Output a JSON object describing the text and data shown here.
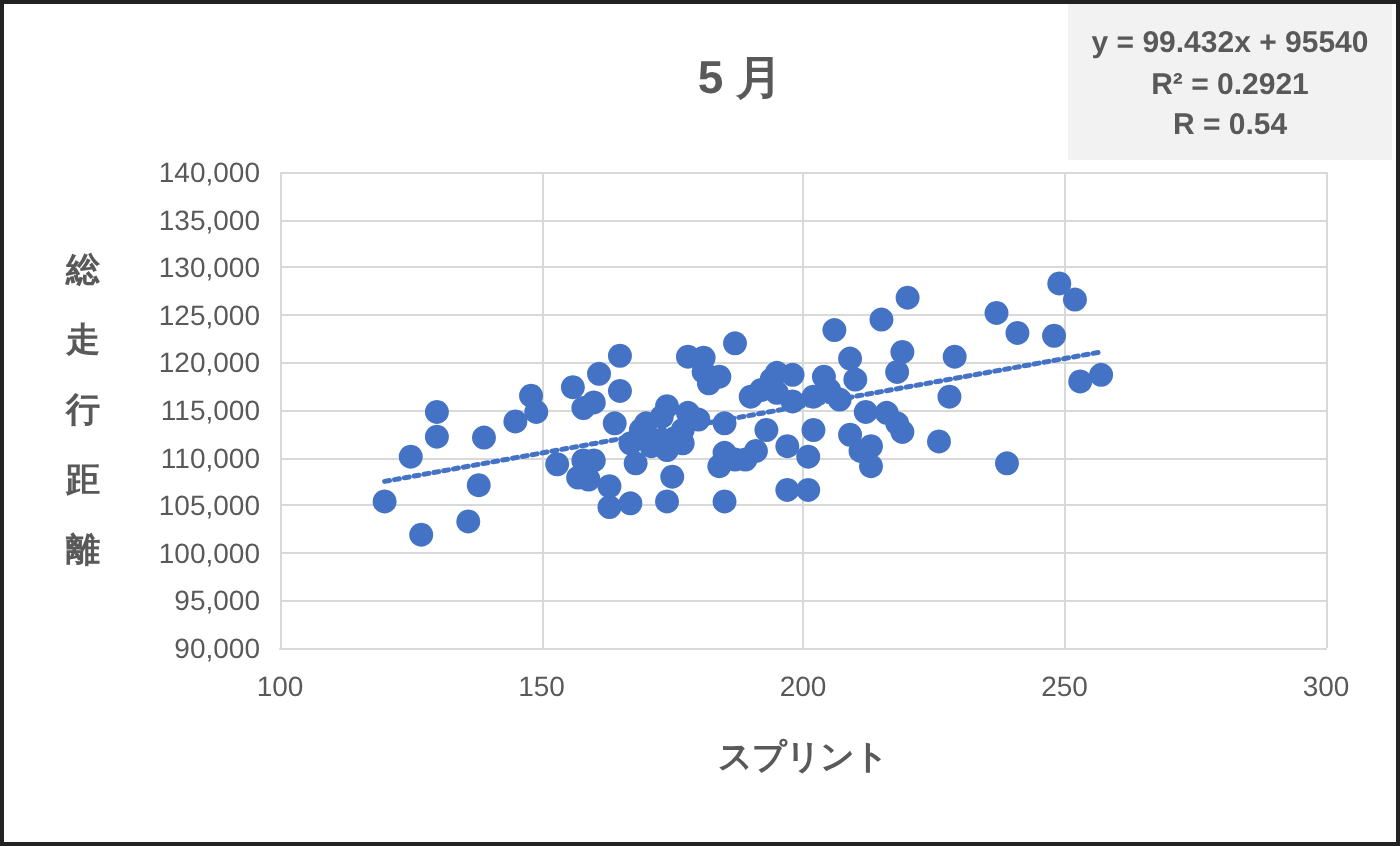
{
  "chart_data": {
    "type": "scatter",
    "title": "5 月",
    "xlabel": "スプリント",
    "ylabel": "総走行距離",
    "annotations": [
      "y = 99.432x + 95540",
      "R² = 0.2921",
      "R = 0.54"
    ],
    "xlim": [
      100,
      300
    ],
    "xticks": [
      100,
      150,
      200,
      250,
      300
    ],
    "ylim": [
      90000,
      140000
    ],
    "yticks": [
      {
        "value": 90000,
        "label": "90,000"
      },
      {
        "value": 95000,
        "label": "95,000"
      },
      {
        "value": 100000,
        "label": "100,000"
      },
      {
        "value": 105000,
        "label": "105,000"
      },
      {
        "value": 110000,
        "label": "110,000"
      },
      {
        "value": 115000,
        "label": "115,000"
      },
      {
        "value": 120000,
        "label": "120,000"
      },
      {
        "value": 125000,
        "label": "125,000"
      },
      {
        "value": 130000,
        "label": "130,000"
      },
      {
        "value": 135000,
        "label": "135,000"
      },
      {
        "value": 140000,
        "label": "140,000"
      }
    ],
    "grid": true,
    "marker": "circle",
    "series": [
      {
        "color": "#4472c4",
        "x": [
          120,
          127,
          125,
          130,
          130,
          136,
          138,
          139,
          145,
          148,
          149,
          153,
          156,
          161,
          158,
          160,
          164,
          165,
          165,
          158,
          160,
          157,
          159,
          163,
          163,
          167,
          167,
          174,
          173,
          170,
          169,
          173,
          171,
          174,
          168,
          175,
          174,
          178,
          181,
          181,
          182,
          184,
          187,
          178,
          180,
          177,
          177,
          185,
          185,
          184,
          187,
          185,
          189,
          191,
          190,
          192,
          194,
          195,
          198,
          195,
          198,
          193,
          197,
          197,
          201,
          201,
          202,
          202,
          204,
          205,
          207,
          206,
          209,
          210,
          212,
          209,
          211,
          213,
          213,
          215,
          220,
          219,
          218,
          216,
          218,
          219,
          226,
          229,
          228,
          237,
          241,
          239,
          249,
          252,
          248,
          253,
          257
        ],
        "values": [
          105400,
          101900,
          110100,
          114800,
          112200,
          103300,
          107100,
          112100,
          113800,
          116500,
          114800,
          109300,
          117400,
          118800,
          115200,
          115800,
          113600,
          120700,
          117000,
          109700,
          109700,
          107900,
          107700,
          107000,
          104800,
          105200,
          111500,
          115400,
          114300,
          113600,
          112900,
          111900,
          111200,
          110800,
          109400,
          108000,
          105400,
          120600,
          120500,
          119000,
          117800,
          118500,
          122000,
          114700,
          114000,
          112900,
          111500,
          113600,
          110500,
          109100,
          109800,
          105400,
          109800,
          110700,
          116400,
          117100,
          118200,
          118900,
          118700,
          116800,
          115900,
          112900,
          111200,
          106600,
          106600,
          110100,
          116400,
          112900,
          118500,
          117100,
          116100,
          123400,
          120400,
          118200,
          114800,
          112400,
          110700,
          111200,
          109100,
          124500,
          126800,
          121100,
          119000,
          114700,
          113600,
          112700,
          111700,
          120600,
          116400,
          125200,
          123100,
          109400,
          128300,
          126600,
          122800,
          118000,
          118700
        ]
      },
      {
        "type": "line",
        "color": "#4472c4",
        "line_style": "dotted",
        "marker": "none",
        "x": [
          120,
          257
        ],
        "values": [
          107500,
          121100
        ]
      }
    ]
  }
}
